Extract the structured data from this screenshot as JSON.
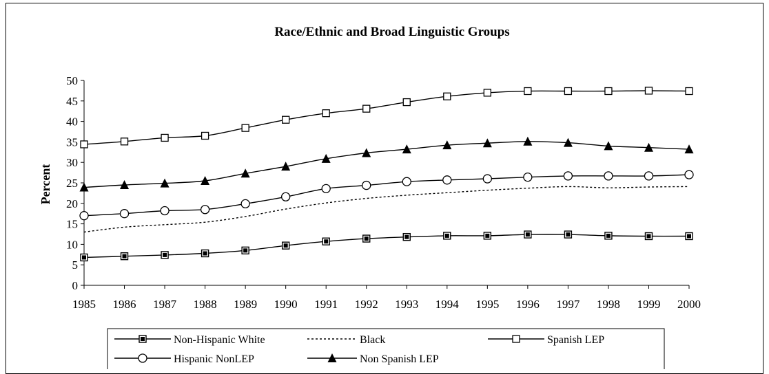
{
  "chart_data": {
    "type": "line",
    "title": "Race/Ethnic and Broad Linguistic Groups",
    "xlabel": "",
    "ylabel": "Percent",
    "ylim": [
      0,
      50
    ],
    "yticks": [
      0,
      5,
      10,
      15,
      20,
      25,
      30,
      35,
      40,
      45,
      50
    ],
    "grid": false,
    "legend_position": "bottom",
    "x": [
      "1985",
      "1986",
      "1987",
      "1988",
      "1989",
      "1990",
      "1991",
      "1992",
      "1993",
      "1994",
      "1995",
      "1996",
      "1997",
      "1998",
      "1999",
      "2000"
    ],
    "series": [
      {
        "name": "Non-Hispanic White",
        "marker": "filled-square",
        "line": "solid",
        "values": [
          6.8,
          7.1,
          7.4,
          7.8,
          8.5,
          9.7,
          10.7,
          11.4,
          11.8,
          12.1,
          12.1,
          12.4,
          12.4,
          12.1,
          12.0,
          12.0
        ]
      },
      {
        "name": "Black",
        "marker": "none",
        "line": "dashed",
        "values": [
          13.0,
          14.2,
          14.8,
          15.4,
          16.8,
          18.6,
          20.1,
          21.2,
          22.0,
          22.6,
          23.2,
          23.7,
          24.1,
          23.8,
          24.0,
          24.1
        ]
      },
      {
        "name": "Spanish LEP",
        "marker": "open-square",
        "line": "solid",
        "values": [
          34.4,
          35.1,
          36.0,
          36.5,
          38.4,
          40.4,
          42.0,
          43.1,
          44.7,
          46.1,
          47.0,
          47.4,
          47.4,
          47.4,
          47.5,
          47.4
        ]
      },
      {
        "name": "Hispanic NonLEP",
        "marker": "open-circle",
        "line": "solid",
        "values": [
          17.0,
          17.5,
          18.2,
          18.5,
          19.9,
          21.6,
          23.6,
          24.4,
          25.3,
          25.7,
          26.0,
          26.4,
          26.7,
          26.7,
          26.7,
          27.0
        ]
      },
      {
        "name": "Non Spanish LEP",
        "marker": "filled-triangle",
        "line": "solid",
        "values": [
          23.9,
          24.5,
          24.9,
          25.5,
          27.3,
          29.0,
          30.9,
          32.3,
          33.2,
          34.2,
          34.7,
          35.1,
          34.8,
          34.0,
          33.6,
          33.2
        ]
      }
    ],
    "colors": {
      "line": "#000000",
      "background": "#ffffff"
    }
  }
}
